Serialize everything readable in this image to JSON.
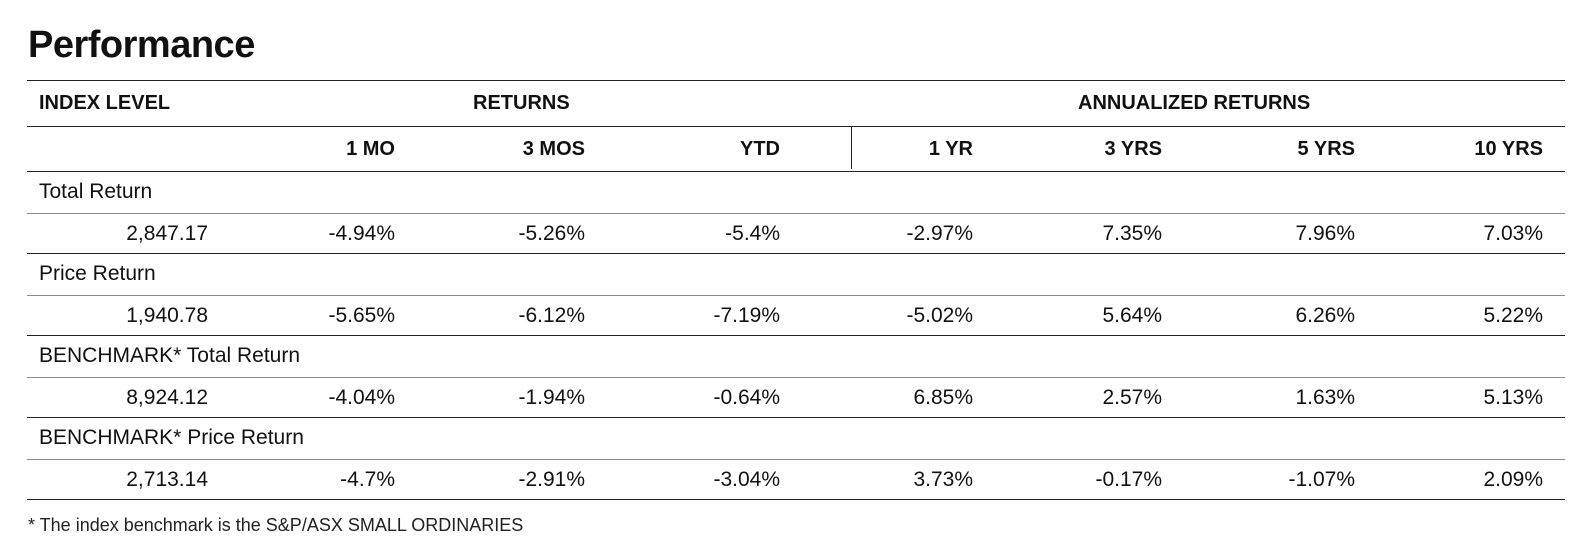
{
  "title": "Performance",
  "headers": {
    "index_level": "INDEX LEVEL",
    "returns": "RETURNS",
    "annualized_returns": "ANNUALIZED RETURNS",
    "periods": [
      "1 MO",
      "3 MOS",
      "YTD",
      "1 YR",
      "3 YRS",
      "5 YRS",
      "10 YRS"
    ]
  },
  "rows": [
    {
      "label": "Total Return",
      "index_level": "2,847.17",
      "values": [
        "-4.94%",
        "-5.26%",
        "-5.4%",
        "-2.97%",
        "7.35%",
        "7.96%",
        "7.03%"
      ]
    },
    {
      "label": "Price Return",
      "index_level": "1,940.78",
      "values": [
        "-5.65%",
        "-6.12%",
        "-7.19%",
        "-5.02%",
        "5.64%",
        "6.26%",
        "5.22%"
      ]
    },
    {
      "label": "BENCHMARK* Total Return",
      "index_level": "8,924.12",
      "values": [
        "-4.04%",
        "-1.94%",
        "-0.64%",
        "6.85%",
        "2.57%",
        "1.63%",
        "5.13%"
      ]
    },
    {
      "label": "BENCHMARK* Price Return",
      "index_level": "2,713.14",
      "values": [
        "-4.7%",
        "-2.91%",
        "-3.04%",
        "3.73%",
        "-0.17%",
        "-1.07%",
        "2.09%"
      ]
    }
  ],
  "footnote": "* The index benchmark is the  S&P/ASX SMALL ORDINARIES"
}
